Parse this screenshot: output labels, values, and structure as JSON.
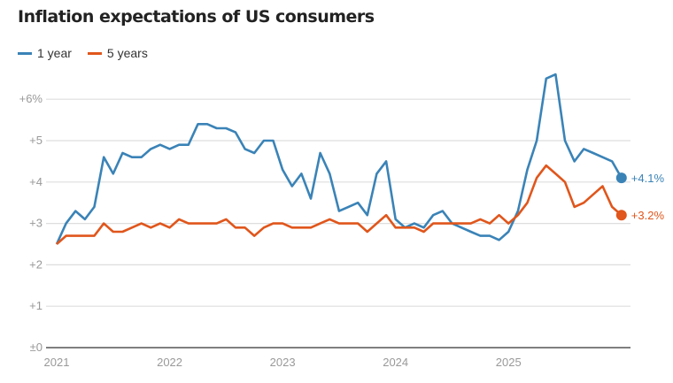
{
  "chart_data": {
    "type": "line",
    "title": "Inflation expectations of US consumers",
    "x_tick_labels": [
      "2021",
      "2022",
      "2023",
      "2024",
      "2025"
    ],
    "y_tick_labels": [
      "±0",
      "+1",
      "+2",
      "+3",
      "+4",
      "+5",
      "+6%"
    ],
    "y_ticks": [
      0,
      1,
      2,
      3,
      4,
      5,
      6
    ],
    "ylim": [
      0,
      6
    ],
    "x_start": "2021-01",
    "x_end": "2026-01",
    "frequency": "monthly",
    "grid": true,
    "legend_position": "top-left",
    "series": [
      {
        "name": "1 year",
        "color": "#3a83b7",
        "end_label": "+4.1%",
        "values": [
          2.5,
          3.0,
          3.3,
          3.1,
          3.4,
          4.6,
          4.2,
          4.7,
          4.6,
          4.6,
          4.8,
          4.9,
          4.8,
          4.9,
          4.9,
          5.4,
          5.4,
          5.3,
          5.3,
          5.2,
          4.8,
          4.7,
          5.0,
          5.0,
          4.3,
          3.9,
          4.2,
          3.6,
          4.7,
          4.2,
          3.3,
          3.4,
          3.5,
          3.2,
          4.2,
          4.5,
          3.1,
          2.9,
          3.0,
          2.9,
          3.2,
          3.3,
          3.0,
          2.9,
          2.8,
          2.7,
          2.7,
          2.6,
          2.8,
          3.3,
          4.3,
          5.0,
          6.5,
          6.6,
          5.0,
          4.5,
          4.8,
          4.7,
          4.6,
          4.5,
          4.1
        ]
      },
      {
        "name": "5 years",
        "color": "#e0561c",
        "end_label": "+3.2%",
        "values": [
          2.5,
          2.7,
          2.7,
          2.7,
          2.7,
          3.0,
          2.8,
          2.8,
          2.9,
          3.0,
          2.9,
          3.0,
          2.9,
          3.1,
          3.0,
          3.0,
          3.0,
          3.0,
          3.1,
          2.9,
          2.9,
          2.7,
          2.9,
          3.0,
          3.0,
          2.9,
          2.9,
          2.9,
          3.0,
          3.1,
          3.0,
          3.0,
          3.0,
          2.8,
          3.0,
          3.2,
          2.9,
          2.9,
          2.9,
          2.8,
          3.0,
          3.0,
          3.0,
          3.0,
          3.0,
          3.1,
          3.0,
          3.2,
          3.0,
          3.2,
          3.5,
          4.1,
          4.4,
          4.2,
          4.0,
          3.4,
          3.5,
          3.7,
          3.9,
          3.4,
          3.2
        ]
      }
    ]
  }
}
